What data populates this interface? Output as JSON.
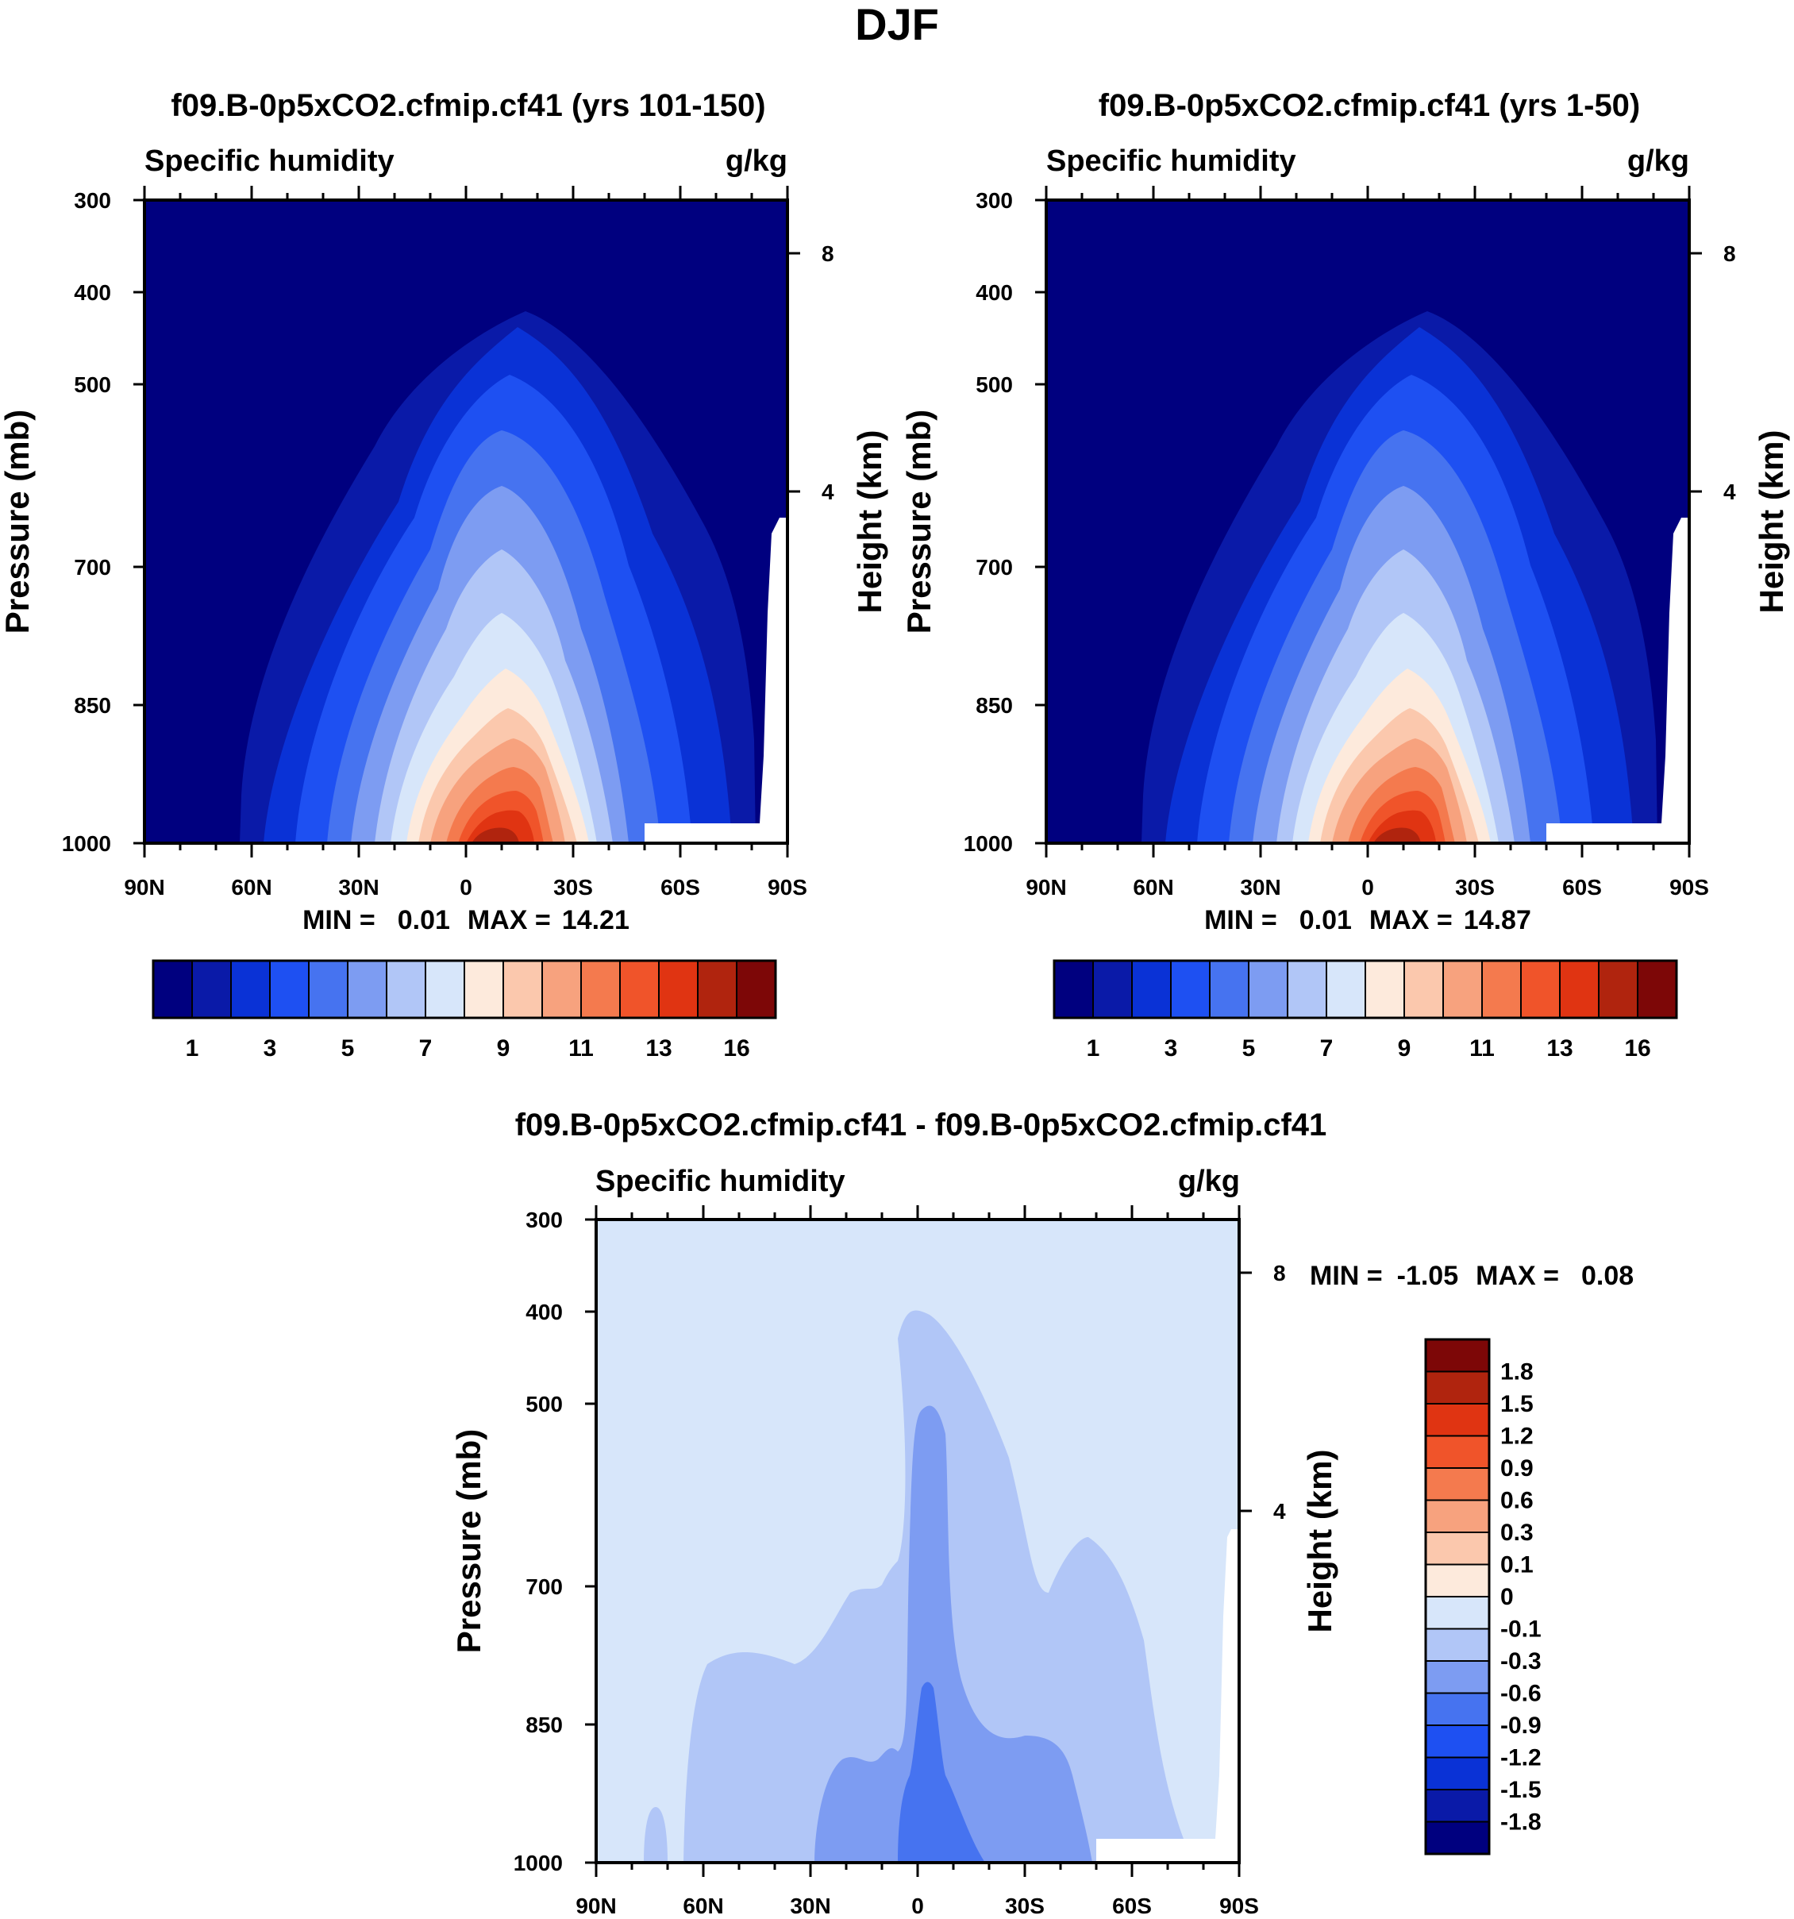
{
  "figure": {
    "title": "DJF"
  },
  "chart_data": [
    {
      "type": "contour",
      "title": "f09.B-0p5xCO2.cfmip.cf41 (yrs 101-150)",
      "left_string": "Specific humidity",
      "right_string": "g/kg",
      "xlabel": "",
      "ylabel": "Pressure (mb)",
      "ylabel_right": "Height (km)",
      "x_ticks": [
        "90N",
        "60N",
        "30N",
        "0",
        "30S",
        "60S",
        "90S"
      ],
      "y_ticks": [
        "300",
        "400",
        "500",
        "700",
        "850",
        "1000"
      ],
      "y_ticks_right": [
        "8",
        "4"
      ],
      "ylim": [
        1000,
        300
      ],
      "stats": {
        "min_label": "MIN =",
        "min": "0.01",
        "max_label": "MAX =",
        "max": "14.21"
      },
      "levels": [
        0.5,
        1,
        2,
        3,
        4,
        5,
        6,
        7,
        8,
        9,
        10,
        11,
        12,
        13,
        16
      ],
      "colorbar_labels": [
        "1",
        "3",
        "5",
        "7",
        "9",
        "11",
        "13",
        "16"
      ]
    },
    {
      "type": "contour",
      "title": "f09.B-0p5xCO2.cfmip.cf41 (yrs 1-50)",
      "left_string": "Specific humidity",
      "right_string": "g/kg",
      "xlabel": "",
      "ylabel": "Pressure (mb)",
      "ylabel_right": "Height (km)",
      "x_ticks": [
        "90N",
        "60N",
        "30N",
        "0",
        "30S",
        "60S",
        "90S"
      ],
      "y_ticks": [
        "300",
        "400",
        "500",
        "700",
        "850",
        "1000"
      ],
      "y_ticks_right": [
        "8",
        "4"
      ],
      "ylim": [
        1000,
        300
      ],
      "stats": {
        "min_label": "MIN =",
        "min": "0.01",
        "max_label": "MAX =",
        "max": "14.87"
      },
      "levels": [
        0.5,
        1,
        2,
        3,
        4,
        5,
        6,
        7,
        8,
        9,
        10,
        11,
        12,
        13,
        16
      ],
      "colorbar_labels": [
        "1",
        "3",
        "5",
        "7",
        "9",
        "11",
        "13",
        "16"
      ]
    },
    {
      "type": "contour",
      "title": "f09.B-0p5xCO2.cfmip.cf41 - f09.B-0p5xCO2.cfmip.cf41",
      "left_string": "Specific humidity",
      "right_string": "g/kg",
      "xlabel": "",
      "ylabel": "Pressure (mb)",
      "ylabel_right": "Height (km)",
      "x_ticks": [
        "90N",
        "60N",
        "30N",
        "0",
        "30S",
        "60S",
        "90S"
      ],
      "y_ticks": [
        "300",
        "400",
        "500",
        "700",
        "850",
        "1000"
      ],
      "y_ticks_right": [
        "8",
        "4"
      ],
      "ylim": [
        1000,
        300
      ],
      "stats": {
        "min_label": "MIN =",
        "min": "-1.05",
        "max_label": "MAX =",
        "max": "0.08"
      },
      "levels": [
        -1.8,
        -1.5,
        -1.2,
        -0.9,
        -0.6,
        -0.3,
        -0.1,
        0,
        0.1,
        0.3,
        0.6,
        0.9,
        1.2,
        1.5,
        1.8
      ],
      "colorbar_labels": [
        "1.8",
        "1.5",
        "1.2",
        "0.9",
        "0.6",
        "0.3",
        "0.1",
        "0",
        "-0.1",
        "-0.3",
        "-0.6",
        "-0.9",
        "-1.2",
        "-1.5",
        "-1.8"
      ]
    }
  ],
  "colors": {
    "abs_scale": [
      "#00007f",
      "#0a1aa8",
      "#0a32d6",
      "#1e50f2",
      "#4673f0",
      "#7d9cf2",
      "#b1c6f7",
      "#d7e6fa",
      "#fdeadc",
      "#fbc8ad",
      "#f7a27e",
      "#f47a4e",
      "#f0542a",
      "#e03412",
      "#b0240e",
      "#7d0707"
    ],
    "diff_scale": [
      "#7d0707",
      "#b0240e",
      "#e03412",
      "#f0542a",
      "#f47a4e",
      "#f7a27e",
      "#fbc8ad",
      "#fdeadc",
      "#d7e6fa",
      "#b1c6f7",
      "#7d9cf2",
      "#4673f0",
      "#1e50f2",
      "#0a32d6",
      "#0a1aa8",
      "#00007f"
    ]
  }
}
